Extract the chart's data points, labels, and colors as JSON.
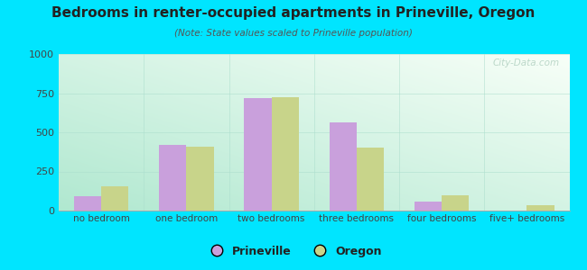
{
  "title": "Bedrooms in renter-occupied apartments in Prineville, Oregon",
  "subtitle": "(Note: State values scaled to Prineville population)",
  "categories": [
    "no bedroom",
    "one bedroom",
    "two bedrooms",
    "three bedrooms",
    "four bedrooms",
    "five+ bedrooms"
  ],
  "prineville_values": [
    90,
    420,
    720,
    565,
    55,
    0
  ],
  "oregon_values": [
    155,
    410,
    725,
    400,
    100,
    35
  ],
  "prineville_color": "#c9a0dc",
  "oregon_color": "#c8d48a",
  "bg_outer": "#00e5ff",
  "ylim": [
    0,
    1000
  ],
  "yticks": [
    0,
    250,
    500,
    750,
    1000
  ],
  "bar_width": 0.32,
  "legend_labels": [
    "Prineville",
    "Oregon"
  ],
  "grad_top_left": "#c8f0e0",
  "grad_bottom_right": "#f0faf5"
}
